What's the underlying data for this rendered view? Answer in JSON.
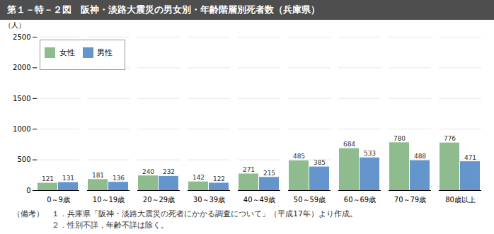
{
  "chart_data": {
    "type": "bar",
    "title": "第１－特－２図　阪神・淡路大震災の男女別・年齢階層別死者数（兵庫県）",
    "categories": [
      "0～9歳",
      "10～19歳",
      "20～29歳",
      "30～39歳",
      "40～49歳",
      "50～59歳",
      "60～69歳",
      "70～79歳",
      "80歳以上"
    ],
    "series": [
      {
        "name": "女性",
        "color": "#8FBC8F",
        "values": [
          121,
          181,
          240,
          142,
          271,
          485,
          684,
          780,
          776
        ]
      },
      {
        "name": "男性",
        "color": "#6495CD",
        "values": [
          131,
          136,
          232,
          122,
          215,
          385,
          533,
          488,
          471
        ]
      }
    ],
    "ylabel": "（人）",
    "ylim": [
      0,
      2500
    ],
    "yticks": [
      0,
      500,
      1000,
      1500,
      2000,
      2500
    ],
    "grid": true,
    "legend": "upper left",
    "data_labels": true,
    "notes": [
      "（備考）　１．兵庫県「阪神・淡路大震災の死者にかかる調査について」（平成17年）より作成。",
      "　　　　　２．性別不詳，年齢不詳は除く。"
    ]
  }
}
